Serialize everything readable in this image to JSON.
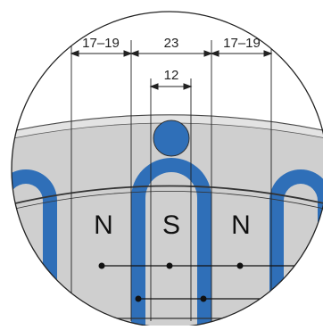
{
  "dimensions": {
    "left_gap": "17–19",
    "center_gap": "23",
    "right_gap": "17–19",
    "hole": "12"
  },
  "poles": [
    "N",
    "S",
    "N"
  ],
  "colors": {
    "magnet": "#2f6fb8",
    "body": "#d0d0d0",
    "outline": "#1a1a1a",
    "background": "#ffffff"
  }
}
